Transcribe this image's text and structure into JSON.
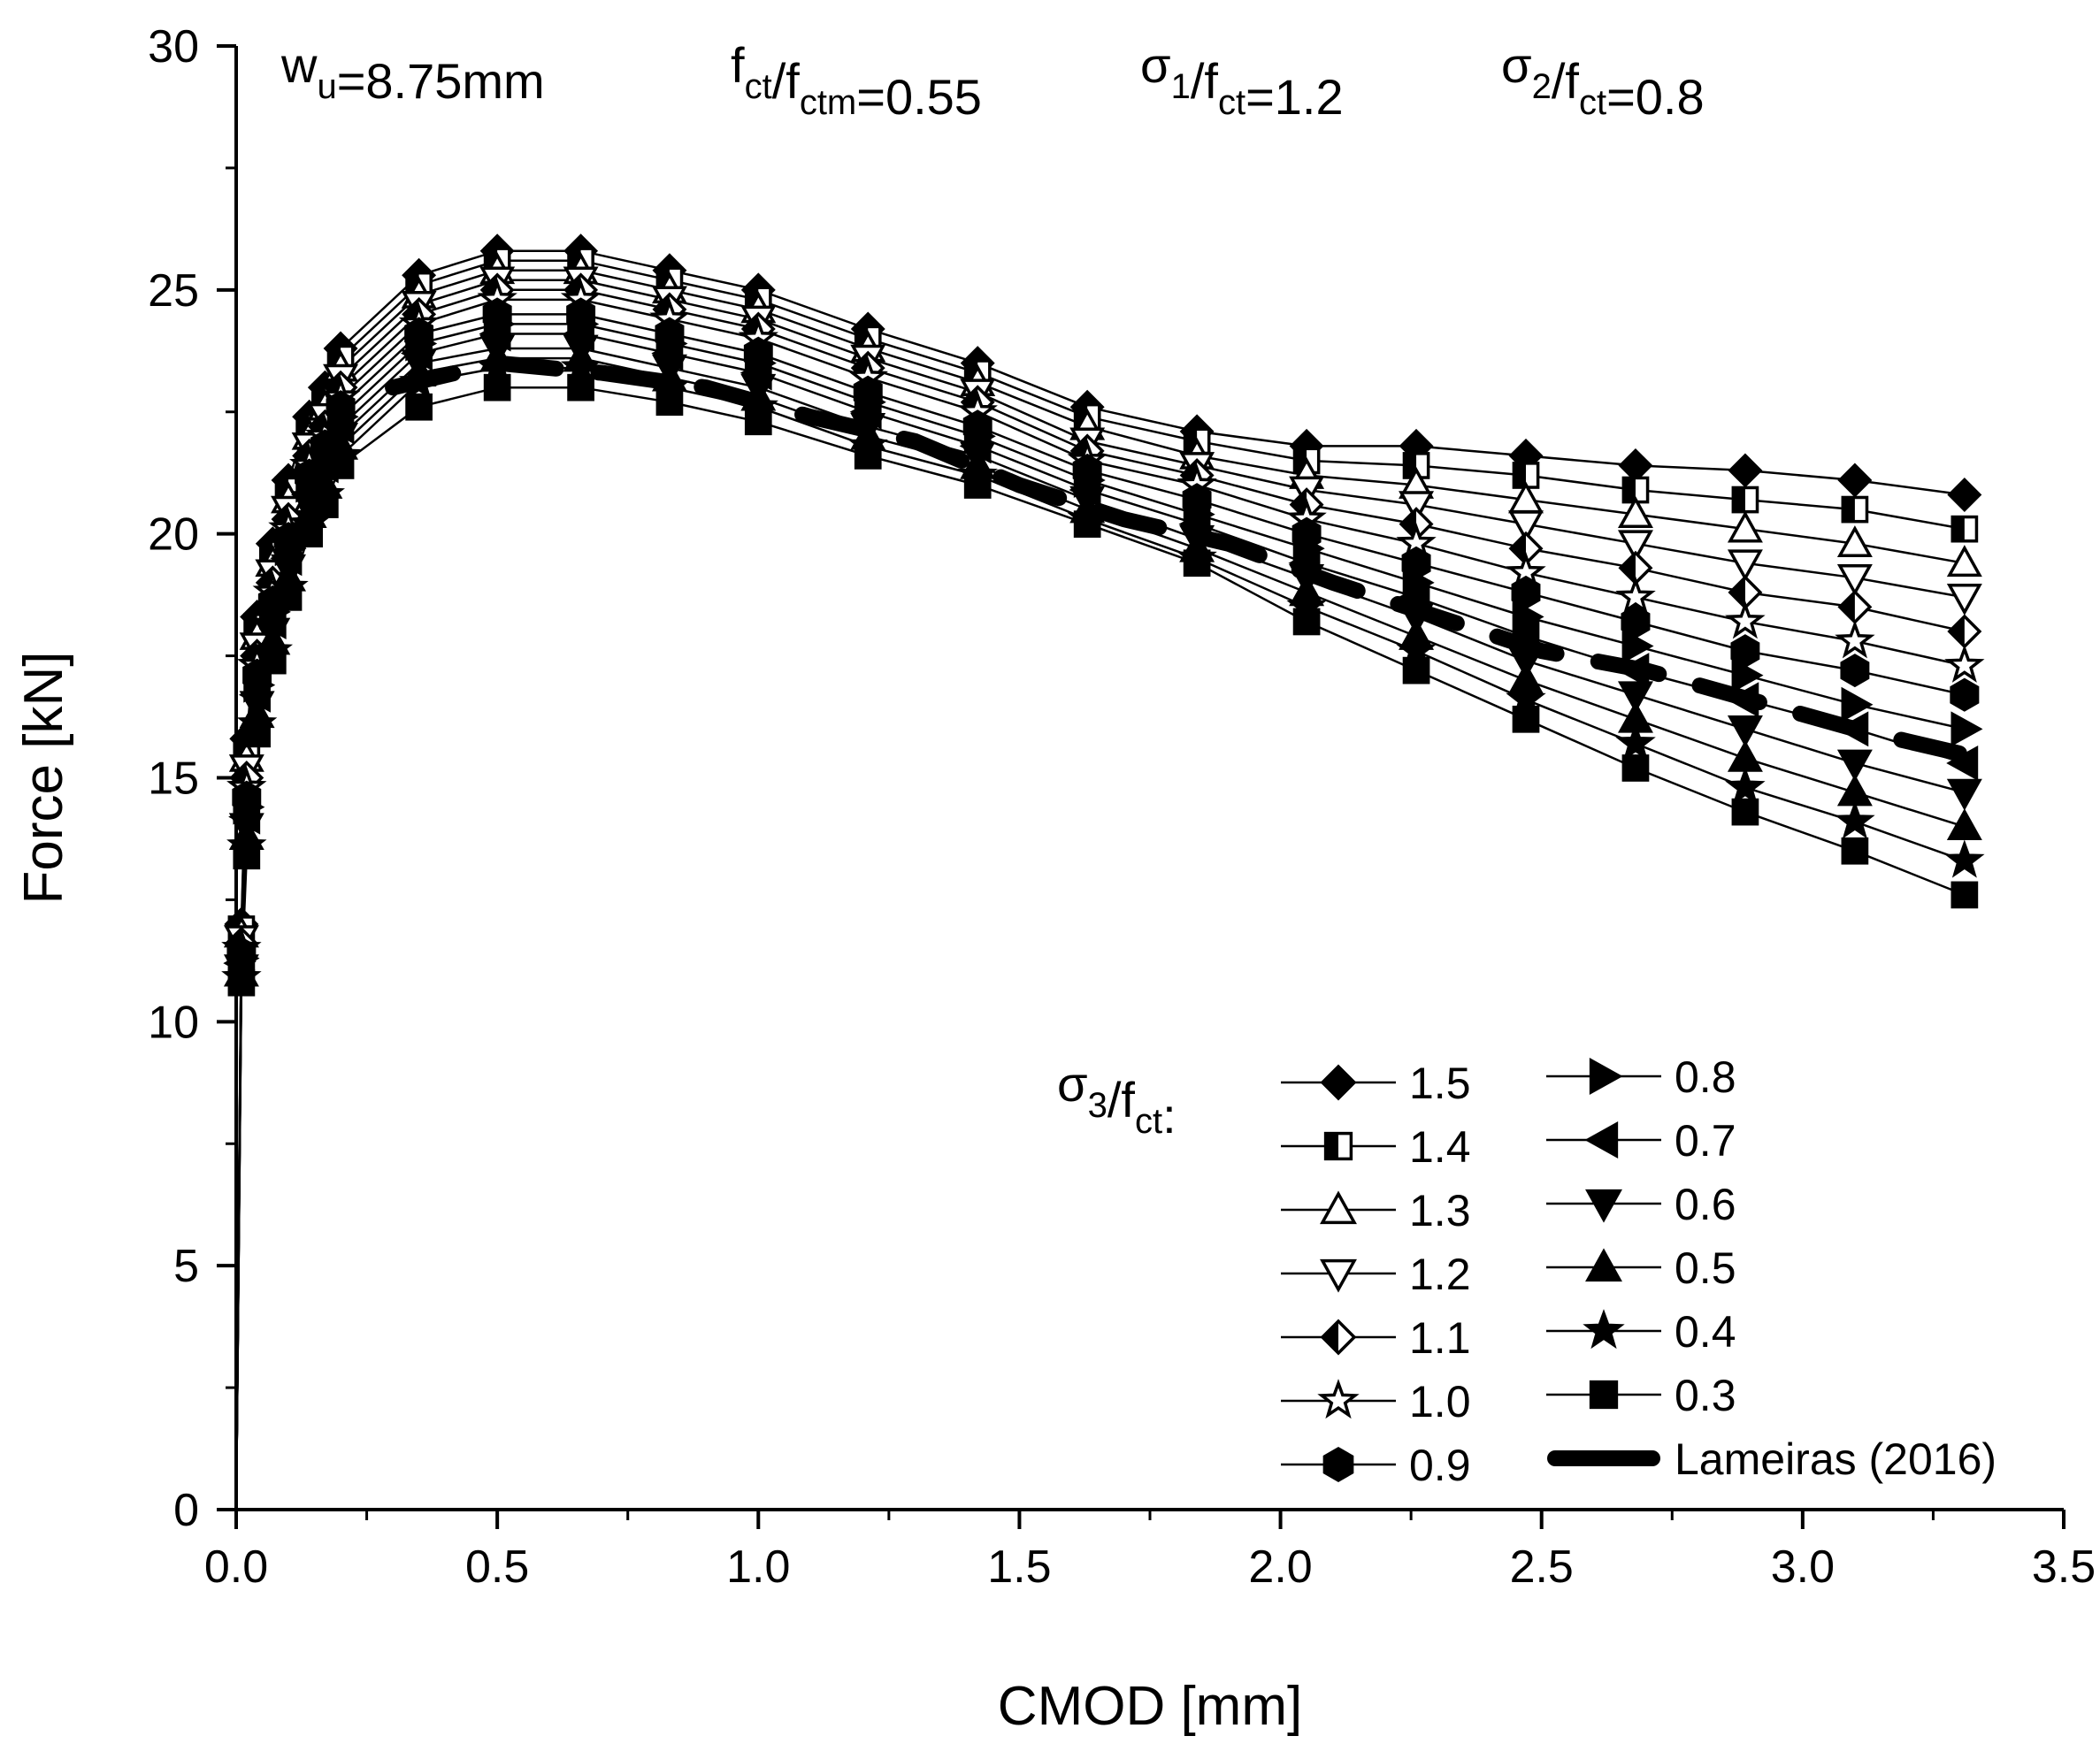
{
  "chart_data": {
    "type": "line",
    "xlabel": "CMOD [mm]",
    "ylabel": "Force [kN]",
    "xlim": [
      0,
      3.5
    ],
    "ylim": [
      0,
      30
    ],
    "xticks": [
      "0.0",
      "0.5",
      "1.0",
      "1.5",
      "2.0",
      "2.5",
      "3.0",
      "3.5"
    ],
    "yticks": [
      "0",
      "5",
      "10",
      "15",
      "20",
      "25",
      "30"
    ],
    "annotations": [
      {
        "main": "w",
        "sub": "u",
        "tail": "=8.75mm"
      },
      {
        "main": "f",
        "sub": "ct",
        "mid": "/f",
        "sub2": "ctm",
        "tail": "=0.55"
      },
      {
        "main": "σ",
        "sub": "1",
        "mid": "/f",
        "sub2": "ct",
        "tail": "=1.2"
      },
      {
        "main": "σ",
        "sub": "2",
        "mid": "/f",
        "sub2": "ct",
        "tail": "=0.8"
      }
    ],
    "legend_title": {
      "main": "σ",
      "sub": "3",
      "mid": "/f",
      "sub2": "ct",
      "tail": ":"
    },
    "legend_position": "bottom-right",
    "shared_x": [
      0,
      0.01,
      0.02,
      0.04,
      0.07,
      0.1,
      0.14,
      0.17,
      0.2,
      0.35,
      0.5,
      0.66,
      0.83,
      1.0,
      1.21,
      1.42,
      1.63,
      1.84,
      2.05,
      2.26,
      2.47,
      2.68,
      2.89,
      3.1,
      3.31
    ],
    "series": [
      {
        "name": "1.5",
        "marker": "diamond-filled",
        "values": [
          0,
          12.0,
          15.8,
          18.3,
          19.8,
          21.1,
          22.4,
          23.0,
          23.8,
          25.3,
          25.8,
          25.8,
          25.4,
          25.0,
          24.2,
          23.5,
          22.6,
          22.1,
          21.8,
          21.8,
          21.6,
          21.4,
          21.3,
          21.1,
          20.8
        ]
      },
      {
        "name": "1.4",
        "marker": "square-half",
        "values": [
          0,
          11.9,
          15.6,
          18.1,
          19.6,
          20.9,
          22.2,
          22.8,
          23.6,
          25.1,
          25.6,
          25.6,
          25.2,
          24.8,
          24.0,
          23.3,
          22.4,
          21.9,
          21.5,
          21.4,
          21.2,
          20.9,
          20.7,
          20.5,
          20.1
        ]
      },
      {
        "name": "1.3",
        "marker": "triangle-up-open",
        "values": [
          0,
          11.8,
          15.4,
          17.9,
          19.4,
          20.7,
          22.0,
          22.6,
          23.4,
          24.9,
          25.4,
          25.4,
          25.0,
          24.6,
          23.8,
          23.1,
          22.2,
          21.6,
          21.2,
          21.0,
          20.7,
          20.4,
          20.1,
          19.8,
          19.4
        ]
      },
      {
        "name": "1.2",
        "marker": "triangle-down-open",
        "values": [
          0,
          11.7,
          15.2,
          17.7,
          19.2,
          20.5,
          21.8,
          22.4,
          23.2,
          24.7,
          25.2,
          25.2,
          24.8,
          24.4,
          23.6,
          22.9,
          21.9,
          21.4,
          20.9,
          20.6,
          20.2,
          19.8,
          19.4,
          19.1,
          18.7
        ]
      },
      {
        "name": "1.1",
        "marker": "diamond-half",
        "values": [
          0,
          11.6,
          15.0,
          17.5,
          19.0,
          20.3,
          21.6,
          22.2,
          23.0,
          24.5,
          25.0,
          25.0,
          24.6,
          24.2,
          23.4,
          22.7,
          21.7,
          21.2,
          20.6,
          20.2,
          19.7,
          19.3,
          18.8,
          18.5,
          18.0
        ]
      },
      {
        "name": "1.0",
        "marker": "star-open",
        "values": [
          0,
          11.5,
          14.8,
          17.3,
          18.8,
          20.1,
          21.4,
          22.0,
          22.8,
          24.3,
          24.8,
          24.8,
          24.4,
          24.0,
          23.2,
          22.5,
          21.5,
          21.0,
          20.3,
          19.8,
          19.2,
          18.7,
          18.2,
          17.8,
          17.3
        ]
      },
      {
        "name": "0.9",
        "marker": "hexagon-filled",
        "values": [
          0,
          11.4,
          14.6,
          17.1,
          18.6,
          19.9,
          21.2,
          21.8,
          22.6,
          24.1,
          24.5,
          24.5,
          24.1,
          23.7,
          22.9,
          22.2,
          21.3,
          20.7,
          20.0,
          19.4,
          18.8,
          18.2,
          17.6,
          17.2,
          16.7
        ]
      },
      {
        "name": "0.8",
        "marker": "triangle-right-filled",
        "values": [
          0,
          11.3,
          14.4,
          16.9,
          18.4,
          19.7,
          21.0,
          21.6,
          22.4,
          23.9,
          24.3,
          24.3,
          23.9,
          23.5,
          22.7,
          22.0,
          21.1,
          20.4,
          19.7,
          19.0,
          18.3,
          17.7,
          17.1,
          16.5,
          16.0
        ]
      },
      {
        "name": "0.7",
        "marker": "triangle-left-filled",
        "values": [
          0,
          11.2,
          14.2,
          16.7,
          18.2,
          19.5,
          20.8,
          21.4,
          22.2,
          23.7,
          24.1,
          24.1,
          23.7,
          23.3,
          22.5,
          21.8,
          20.9,
          20.2,
          19.4,
          18.7,
          17.9,
          17.2,
          16.6,
          16.0,
          15.3
        ]
      },
      {
        "name": "0.6",
        "marker": "triangle-down-filled",
        "values": [
          0,
          11.1,
          14.0,
          16.5,
          18.0,
          19.3,
          20.6,
          21.2,
          22.0,
          23.5,
          23.8,
          23.8,
          23.4,
          23.0,
          22.2,
          21.6,
          20.7,
          19.9,
          19.1,
          18.3,
          17.4,
          16.7,
          16.0,
          15.3,
          14.7
        ]
      },
      {
        "name": "0.5",
        "marker": "triangle-up-filled",
        "values": [
          0,
          11.0,
          13.8,
          16.3,
          17.8,
          19.1,
          20.4,
          21.0,
          21.8,
          23.3,
          23.6,
          23.6,
          23.2,
          22.8,
          22.0,
          21.4,
          20.5,
          19.7,
          18.8,
          17.9,
          17.0,
          16.2,
          15.4,
          14.7,
          14.0
        ]
      },
      {
        "name": "0.4",
        "marker": "star-filled",
        "values": [
          0,
          10.9,
          13.6,
          16.1,
          17.6,
          18.9,
          20.2,
          20.8,
          21.6,
          23.1,
          23.4,
          23.4,
          23.0,
          22.6,
          21.8,
          21.2,
          20.3,
          19.5,
          18.5,
          17.6,
          16.6,
          15.7,
          14.8,
          14.1,
          13.3
        ]
      },
      {
        "name": "0.3",
        "marker": "square-filled",
        "values": [
          0,
          10.8,
          13.4,
          15.9,
          17.4,
          18.7,
          20.0,
          20.6,
          21.4,
          22.6,
          23.0,
          23.0,
          22.7,
          22.3,
          21.6,
          21.0,
          20.2,
          19.4,
          18.2,
          17.2,
          16.2,
          15.2,
          14.3,
          13.5,
          12.6
        ]
      },
      {
        "name": "Lameiras (2016)",
        "marker": "thick-dashed-line",
        "x": [
          0.3,
          0.5,
          0.7,
          0.9,
          1.1,
          1.3,
          1.5,
          1.7,
          1.9,
          2.1,
          2.3,
          2.5,
          2.7,
          2.9,
          3.1,
          3.3
        ],
        "values": [
          23.0,
          23.5,
          23.3,
          23.0,
          22.4,
          21.9,
          21.0,
          20.3,
          19.8,
          19.0,
          18.3,
          17.6,
          17.2,
          16.6,
          16.0,
          15.5
        ]
      }
    ]
  }
}
